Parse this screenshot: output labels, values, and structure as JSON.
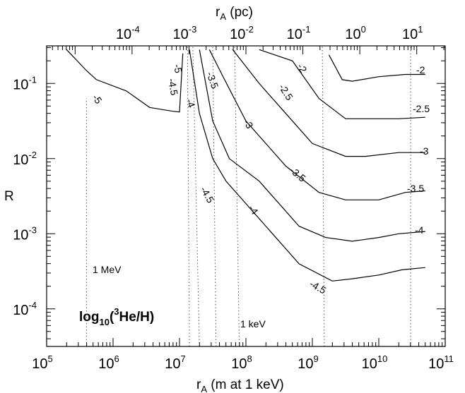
{
  "chart_data": {
    "type": "contour",
    "title": "log10(3He/H)",
    "annotation_title": {
      "main": "log",
      "sub": "10",
      "open": "(",
      "sup": "3",
      "rest": "He/H)"
    },
    "xlabel": {
      "main": "r",
      "sub": "A",
      "rest": " (m at 1 keV)"
    },
    "x2label": {
      "main": "r",
      "sub": "A",
      "rest": " (pc)"
    },
    "ylabel": "R",
    "x_log_range": [
      5,
      11
    ],
    "x2_log_range": [
      -5.5,
      1.5
    ],
    "y_log_range": [
      -4.5,
      -0.5
    ],
    "x_ticks": [
      {
        "base": "10",
        "exp": "5"
      },
      {
        "base": "10",
        "exp": "6"
      },
      {
        "base": "10",
        "exp": "7"
      },
      {
        "base": "10",
        "exp": "8"
      },
      {
        "base": "10",
        "exp": "9"
      },
      {
        "base": "10",
        "exp": "10"
      },
      {
        "base": "10",
        "exp": "11"
      }
    ],
    "x2_ticks": [
      {
        "base": "10",
        "exp": "-4"
      },
      {
        "base": "10",
        "exp": "-3"
      },
      {
        "base": "10",
        "exp": "-2"
      },
      {
        "base": "10",
        "exp": "-1"
      },
      {
        "base": "10",
        "exp": "0"
      },
      {
        "base": "10",
        "exp": "1"
      }
    ],
    "y_ticks": [
      {
        "base": "10",
        "exp": "-1"
      },
      {
        "base": "10",
        "exp": "-2"
      },
      {
        "base": "10",
        "exp": "-3"
      },
      {
        "base": "10",
        "exp": "-4"
      }
    ],
    "reference_lines_note": "dotted lines mark photon energies",
    "reference_labels": [
      "1 MeV",
      "1 keV"
    ],
    "contours": [
      {
        "level": "-2",
        "points": [
          [
            9.25,
            -0.62
          ],
          [
            9.45,
            -0.95
          ],
          [
            9.6,
            -0.97
          ],
          [
            10.0,
            -0.91
          ],
          [
            10.4,
            -0.88
          ],
          [
            10.7,
            -0.88
          ]
        ]
      },
      {
        "level": "-2.5",
        "points": [
          [
            8.2,
            -0.55
          ],
          [
            8.7,
            -0.7
          ],
          [
            9.1,
            -1.2
          ],
          [
            9.5,
            -1.47
          ],
          [
            9.9,
            -1.47
          ],
          [
            10.3,
            -1.47
          ],
          [
            10.7,
            -1.45
          ]
        ]
      },
      {
        "level": "-3",
        "points": [
          [
            7.8,
            -0.55
          ],
          [
            8.2,
            -1.0
          ],
          [
            8.5,
            -1.3
          ],
          [
            9.0,
            -1.8
          ],
          [
            9.5,
            -1.97
          ],
          [
            9.8,
            -1.97
          ],
          [
            10.3,
            -1.92
          ],
          [
            10.7,
            -1.92
          ]
        ]
      },
      {
        "level": "-3.5",
        "points": [
          [
            7.45,
            -0.55
          ],
          [
            7.65,
            -0.9
          ],
          [
            8.0,
            -1.5
          ],
          [
            8.6,
            -2.1
          ],
          [
            9.1,
            -2.45
          ],
          [
            9.5,
            -2.55
          ],
          [
            10.0,
            -2.55
          ],
          [
            10.4,
            -2.45
          ],
          [
            10.7,
            -2.43
          ]
        ]
      },
      {
        "level": "-4",
        "points": [
          [
            7.3,
            -0.55
          ],
          [
            7.5,
            -1.5
          ],
          [
            7.75,
            -2.0
          ],
          [
            8.2,
            -2.3
          ],
          [
            8.8,
            -2.9
          ],
          [
            9.2,
            -3.05
          ],
          [
            9.6,
            -3.1
          ],
          [
            10.0,
            -3.05
          ],
          [
            10.3,
            -3.0
          ],
          [
            10.7,
            -2.97
          ]
        ]
      },
      {
        "level": "-4.5",
        "points": [
          [
            7.15,
            -0.55
          ],
          [
            7.3,
            -1.4
          ],
          [
            7.5,
            -2.0
          ],
          [
            7.7,
            -2.3
          ],
          [
            8.3,
            -2.9
          ],
          [
            8.8,
            -3.4
          ],
          [
            9.3,
            -3.63
          ],
          [
            9.6,
            -3.6
          ],
          [
            10.0,
            -3.55
          ],
          [
            10.35,
            -3.48
          ],
          [
            10.7,
            -3.45
          ]
        ]
      },
      {
        "level": "-5",
        "points": [
          [
            5.3,
            -0.55
          ],
          [
            5.6,
            -0.83
          ],
          [
            5.75,
            -0.95
          ],
          [
            6.2,
            -1.1
          ],
          [
            6.55,
            -1.32
          ],
          [
            6.9,
            -1.37
          ],
          [
            7.0,
            -1.38
          ],
          [
            7.05,
            -0.6
          ]
        ]
      }
    ],
    "label_level_-5": "-5",
    "label_stacked": "-5",
    "label_stacked2": "-4.5",
    "grid": false
  }
}
